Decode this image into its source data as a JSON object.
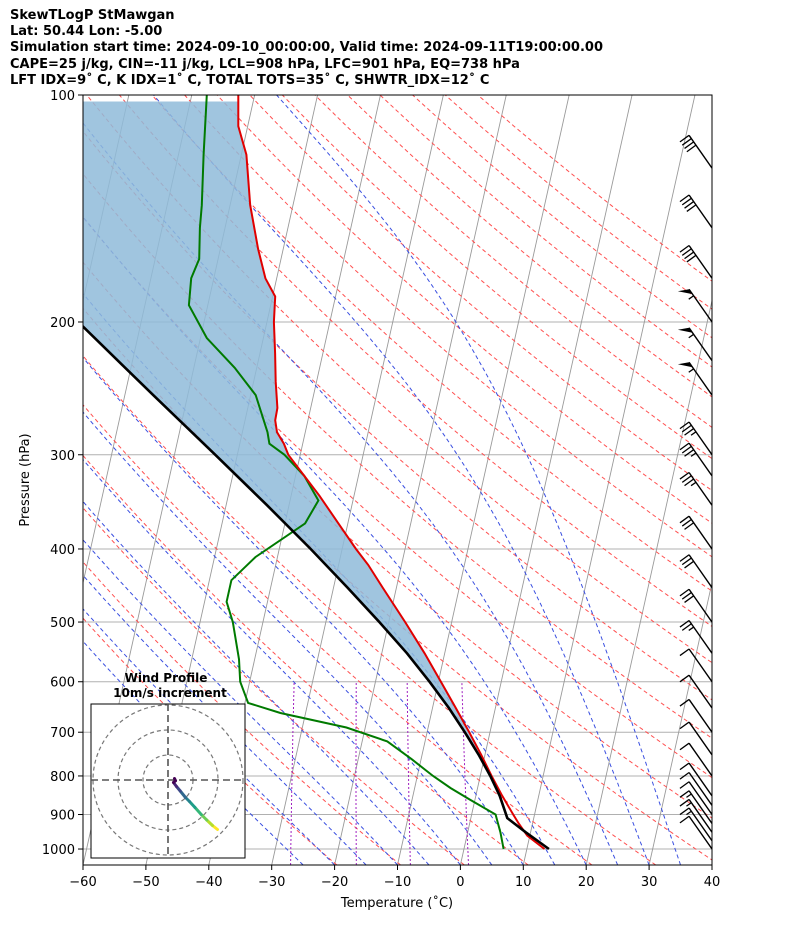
{
  "header": {
    "title": "SkewTLogP StMawgan",
    "location": "Lat: 50.44   Lon: -5.00",
    "times": "Simulation start time: 2024-09-10_00:00:00, Valid time: 2024-09-11T19:00:00.00",
    "indices1": "CAPE=25 j/kg, CIN=-11 j/kg, LCL=908 hPa, LFC=901 hPa, EQ=738 hPa",
    "indices2": "LFT IDX=9˚ C, K IDX=1˚ C, TOTAL TOTS=35˚ C, SHWTR_IDX=12˚ C"
  },
  "colors": {
    "temperature": "#e00000",
    "dewpoint": "#007a00",
    "parcel": "#000000",
    "cape_fill": "#8fbbd9",
    "dry_adiabat": "#ff5050",
    "moist_adiabat": "#3a4fe0",
    "mixing_ratio": "#a020c0",
    "isotherm": "#9a9a9a",
    "isobar": "#b0b0b0"
  },
  "chart_data": {
    "type": "line",
    "chart_kind": "skew-T log-P",
    "xlabel": "Temperature (˚C)",
    "ylabel": "Pressure (hPa)",
    "xlim": [
      -60,
      40
    ],
    "ylim": [
      1050,
      100
    ],
    "y_scale": "log",
    "xticks": [
      -60,
      -50,
      -40,
      -30,
      -20,
      -10,
      0,
      10,
      20,
      30,
      40
    ],
    "yticks": [
      1000,
      900,
      800,
      700,
      600,
      500,
      400,
      300,
      200,
      100
    ],
    "grid": true,
    "series": [
      {
        "role": "temperature",
        "points": [
          {
            "p": 1000,
            "t": 12.8
          },
          {
            "p": 960,
            "t": 9.6
          },
          {
            "p": 925,
            "t": 7.8
          },
          {
            "p": 900,
            "t": 6.6
          },
          {
            "p": 850,
            "t": 4.2
          },
          {
            "p": 800,
            "t": 1.8
          },
          {
            "p": 750,
            "t": -0.6
          },
          {
            "p": 700,
            "t": -3.3
          },
          {
            "p": 650,
            "t": -6.3
          },
          {
            "p": 600,
            "t": -9.6
          },
          {
            "p": 550,
            "t": -13.2
          },
          {
            "p": 500,
            "t": -17.4
          },
          {
            "p": 450,
            "t": -22.2
          },
          {
            "p": 420,
            "t": -25.3
          },
          {
            "p": 400,
            "t": -27.8
          },
          {
            "p": 370,
            "t": -31.5
          },
          {
            "p": 340,
            "t": -35.5
          },
          {
            "p": 320,
            "t": -38.6
          },
          {
            "p": 300,
            "t": -41.9
          },
          {
            "p": 290,
            "t": -43.0
          },
          {
            "p": 280,
            "t": -44.5
          },
          {
            "p": 270,
            "t": -45.2
          },
          {
            "p": 260,
            "t": -45.3
          },
          {
            "p": 240,
            "t": -46.5
          },
          {
            "p": 220,
            "t": -47.6
          },
          {
            "p": 200,
            "t": -48.9
          },
          {
            "p": 185,
            "t": -49.6
          },
          {
            "p": 175,
            "t": -51.8
          },
          {
            "p": 160,
            "t": -54.0
          },
          {
            "p": 140,
            "t": -56.8
          },
          {
            "p": 120,
            "t": -59.2
          },
          {
            "p": 110,
            "t": -61.5
          },
          {
            "p": 100,
            "t": -62.6
          }
        ]
      },
      {
        "role": "dewpoint",
        "points": [
          {
            "p": 1000,
            "t": 6.3
          },
          {
            "p": 950,
            "t": 5.2
          },
          {
            "p": 925,
            "t": 4.5
          },
          {
            "p": 900,
            "t": 3.8
          },
          {
            "p": 860,
            "t": -0.8
          },
          {
            "p": 830,
            "t": -4.3
          },
          {
            "p": 800,
            "t": -7.5
          },
          {
            "p": 760,
            "t": -11.5
          },
          {
            "p": 720,
            "t": -16.0
          },
          {
            "p": 690,
            "t": -23.0
          },
          {
            "p": 660,
            "t": -34.0
          },
          {
            "p": 640,
            "t": -39.5
          },
          {
            "p": 600,
            "t": -41.5
          },
          {
            "p": 560,
            "t": -42.5
          },
          {
            "p": 500,
            "t": -44.8
          },
          {
            "p": 470,
            "t": -46.5
          },
          {
            "p": 440,
            "t": -46.5
          },
          {
            "p": 410,
            "t": -43.5
          },
          {
            "p": 370,
            "t": -36.8
          },
          {
            "p": 345,
            "t": -35.5
          },
          {
            "p": 320,
            "t": -38.6
          },
          {
            "p": 300,
            "t": -42.5
          },
          {
            "p": 290,
            "t": -45.3
          },
          {
            "p": 280,
            "t": -46.0
          },
          {
            "p": 250,
            "t": -49.2
          },
          {
            "p": 230,
            "t": -53.5
          },
          {
            "p": 210,
            "t": -59.0
          },
          {
            "p": 190,
            "t": -63.0
          },
          {
            "p": 175,
            "t": -63.6
          },
          {
            "p": 165,
            "t": -63.0
          },
          {
            "p": 150,
            "t": -64.0
          },
          {
            "p": 140,
            "t": -64.5
          },
          {
            "p": 120,
            "t": -66.0
          },
          {
            "p": 100,
            "t": -67.6
          }
        ]
      },
      {
        "role": "parcel",
        "points": [
          {
            "p": 1000,
            "t": 13.5
          },
          {
            "p": 950,
            "t": 9.2
          },
          {
            "p": 910,
            "t": 5.8
          },
          {
            "p": 850,
            "t": 3.8
          },
          {
            "p": 800,
            "t": 1.6
          },
          {
            "p": 750,
            "t": -1.0
          },
          {
            "p": 700,
            "t": -4.0
          },
          {
            "p": 650,
            "t": -7.4
          },
          {
            "p": 600,
            "t": -11.4
          },
          {
            "p": 550,
            "t": -16.0
          },
          {
            "p": 500,
            "t": -21.5
          },
          {
            "p": 450,
            "t": -27.8
          },
          {
            "p": 400,
            "t": -35.0
          },
          {
            "p": 350,
            "t": -43.5
          },
          {
            "p": 300,
            "t": -53.5
          },
          {
            "p": 250,
            "t": -65.5
          },
          {
            "p": 200,
            "t": -80.0
          },
          {
            "p": 150,
            "t": -98.0
          },
          {
            "p": 100,
            "t": -122.0
          }
        ]
      }
    ],
    "wind_barbs": [
      {
        "p": 1000,
        "speed_kt": 10
      },
      {
        "p": 975,
        "speed_kt": 15
      },
      {
        "p": 950,
        "speed_kt": 15
      },
      {
        "p": 925,
        "speed_kt": 15
      },
      {
        "p": 900,
        "speed_kt": 10
      },
      {
        "p": 875,
        "speed_kt": 10
      },
      {
        "p": 850,
        "speed_kt": 10
      },
      {
        "p": 800,
        "speed_kt": 10
      },
      {
        "p": 750,
        "speed_kt": 10
      },
      {
        "p": 700,
        "speed_kt": 10
      },
      {
        "p": 650,
        "speed_kt": 10
      },
      {
        "p": 600,
        "speed_kt": 10
      },
      {
        "p": 550,
        "speed_kt": 25
      },
      {
        "p": 500,
        "speed_kt": 30
      },
      {
        "p": 450,
        "speed_kt": 30
      },
      {
        "p": 400,
        "speed_kt": 30
      },
      {
        "p": 350,
        "speed_kt": 35
      },
      {
        "p": 320,
        "speed_kt": 35
      },
      {
        "p": 300,
        "speed_kt": 35
      },
      {
        "p": 250,
        "speed_kt": 55
      },
      {
        "p": 225,
        "speed_kt": 55
      },
      {
        "p": 200,
        "speed_kt": 55
      },
      {
        "p": 175,
        "speed_kt": 40
      },
      {
        "p": 150,
        "speed_kt": 40
      },
      {
        "p": 125,
        "speed_kt": 40
      },
      {
        "p": 100,
        "speed_kt": 40
      }
    ],
    "hodograph": {
      "title": "Wind Profile",
      "subtitle": "10m/s increment",
      "rings_ms": [
        10,
        20,
        30
      ],
      "points_ms": [
        {
          "u": 19.8,
          "v": -19.8
        },
        {
          "u": 17.8,
          "v": -18.2
        },
        {
          "u": 15.5,
          "v": -16.0
        },
        {
          "u": 13.3,
          "v": -13.8
        },
        {
          "u": 10.8,
          "v": -11.0
        },
        {
          "u": 8.6,
          "v": -8.6
        },
        {
          "u": 7.0,
          "v": -7.0
        },
        {
          "u": 4.9,
          "v": -4.4
        },
        {
          "u": 3.4,
          "v": -2.6
        },
        {
          "u": 2.2,
          "v": -1.0
        },
        {
          "u": 3.0,
          "v": -0.3
        },
        {
          "u": 2.6,
          "v": 0.6
        }
      ]
    }
  }
}
